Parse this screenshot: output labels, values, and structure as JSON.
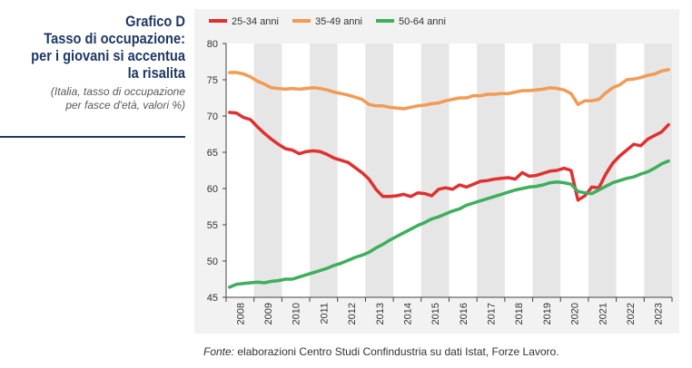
{
  "title_lines": [
    "Grafico D",
    "Tasso di occupazione:",
    "per i giovani si accentua",
    "la risalita"
  ],
  "subtitle_lines": [
    "(Italia, tasso di occupazione",
    "per fasce d'età, valori %)"
  ],
  "source": {
    "label": "Fonte:",
    "text": "elaborazioni Centro Studi Confindustria su dati Istat, Forze Lavoro."
  },
  "chart_data": {
    "type": "line",
    "title": "",
    "xlabel": "",
    "ylabel": "",
    "ylim": [
      45,
      80
    ],
    "yticks": [
      45,
      50,
      55,
      60,
      65,
      70,
      75,
      80
    ],
    "years": [
      "2008",
      "2009",
      "2010",
      "2011",
      "2012",
      "2013",
      "2014",
      "2015",
      "2016",
      "2017",
      "2018",
      "2019",
      "2020",
      "2021",
      "2022",
      "2023"
    ],
    "x": [
      "2008-Q1",
      "2008-Q2",
      "2008-Q3",
      "2008-Q4",
      "2009-Q1",
      "2009-Q2",
      "2009-Q3",
      "2009-Q4",
      "2010-Q1",
      "2010-Q2",
      "2010-Q3",
      "2010-Q4",
      "2011-Q1",
      "2011-Q2",
      "2011-Q3",
      "2011-Q4",
      "2012-Q1",
      "2012-Q2",
      "2012-Q3",
      "2012-Q4",
      "2013-Q1",
      "2013-Q2",
      "2013-Q3",
      "2013-Q4",
      "2014-Q1",
      "2014-Q2",
      "2014-Q3",
      "2014-Q4",
      "2015-Q1",
      "2015-Q2",
      "2015-Q3",
      "2015-Q4",
      "2016-Q1",
      "2016-Q2",
      "2016-Q3",
      "2016-Q4",
      "2017-Q1",
      "2017-Q2",
      "2017-Q3",
      "2017-Q4",
      "2018-Q1",
      "2018-Q2",
      "2018-Q3",
      "2018-Q4",
      "2019-Q1",
      "2019-Q2",
      "2019-Q3",
      "2019-Q4",
      "2020-Q1",
      "2020-Q2",
      "2020-Q3",
      "2020-Q4",
      "2021-Q1",
      "2021-Q2",
      "2021-Q3",
      "2021-Q4",
      "2022-Q1",
      "2022-Q2",
      "2022-Q3",
      "2022-Q4",
      "2023-Q1",
      "2023-Q2",
      "2023-Q3",
      "2023-Q4"
    ],
    "grid": "alternating year bands",
    "legend_position": "top",
    "series": [
      {
        "name": "25-34 anni",
        "color": "#e03131",
        "values": [
          70.5,
          70.4,
          69.8,
          69.5,
          68.5,
          67.6,
          66.8,
          66.1,
          65.5,
          65.3,
          64.8,
          65.1,
          65.2,
          65.1,
          64.7,
          64.2,
          63.9,
          63.6,
          62.9,
          62.2,
          61.3,
          59.9,
          58.9,
          58.9,
          59.0,
          59.2,
          58.9,
          59.4,
          59.3,
          59.0,
          59.9,
          60.1,
          59.9,
          60.5,
          60.2,
          60.6,
          61.0,
          61.1,
          61.3,
          61.4,
          61.5,
          61.3,
          62.2,
          61.7,
          61.8,
          62.1,
          62.4,
          62.5,
          62.8,
          62.5,
          58.4,
          59.0,
          60.2,
          60.1,
          62.0,
          63.5,
          64.5,
          65.3,
          66.1,
          65.9,
          66.8,
          67.3,
          67.8,
          68.8
        ]
      },
      {
        "name": "35-49 anni",
        "color": "#f29b55",
        "values": [
          76.0,
          76.0,
          75.8,
          75.4,
          74.8,
          74.4,
          73.9,
          73.8,
          73.7,
          73.8,
          73.7,
          73.8,
          73.9,
          73.8,
          73.6,
          73.3,
          73.1,
          72.9,
          72.6,
          72.3,
          71.6,
          71.4,
          71.4,
          71.2,
          71.1,
          71.0,
          71.2,
          71.4,
          71.5,
          71.7,
          71.8,
          72.1,
          72.3,
          72.5,
          72.5,
          72.8,
          72.8,
          73.0,
          73.0,
          73.1,
          73.1,
          73.3,
          73.5,
          73.5,
          73.6,
          73.7,
          73.9,
          73.8,
          73.6,
          73.1,
          71.6,
          72.1,
          72.1,
          72.3,
          73.2,
          73.9,
          74.3,
          75.0,
          75.1,
          75.3,
          75.6,
          75.8,
          76.2,
          76.4
        ]
      },
      {
        "name": "50-64 anni",
        "color": "#3fae5d",
        "values": [
          46.4,
          46.8,
          46.9,
          47.0,
          47.1,
          47.0,
          47.2,
          47.3,
          47.5,
          47.5,
          47.8,
          48.1,
          48.4,
          48.7,
          49.0,
          49.4,
          49.7,
          50.1,
          50.5,
          50.8,
          51.2,
          51.8,
          52.3,
          52.9,
          53.4,
          53.9,
          54.4,
          54.9,
          55.3,
          55.8,
          56.1,
          56.5,
          56.9,
          57.2,
          57.7,
          58.0,
          58.3,
          58.6,
          58.9,
          59.2,
          59.5,
          59.8,
          60.0,
          60.2,
          60.3,
          60.5,
          60.8,
          60.9,
          60.8,
          60.6,
          59.6,
          59.4,
          59.3,
          59.8,
          60.3,
          60.8,
          61.1,
          61.4,
          61.6,
          62.0,
          62.3,
          62.8,
          63.4,
          63.8
        ]
      }
    ]
  }
}
